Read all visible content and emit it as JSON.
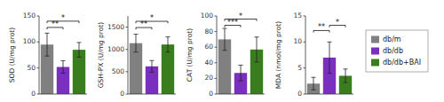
{
  "chart_data": [
    {
      "type": "bar",
      "ylabel": "SOD (U/mg prot)",
      "categories": [
        "db/m",
        "db/db",
        "db/db+BAI"
      ],
      "tick_labels": "y",
      "colors": [
        "#808080",
        "#7B2FBE",
        "#3A7D1E"
      ],
      "values": [
        95,
        52,
        85
      ],
      "errors": [
        22,
        12,
        14
      ],
      "ylim": [
        0,
        150
      ],
      "yticks": [
        0,
        50,
        100,
        150
      ],
      "annotations": [
        {
          "text": "**",
          "from": 0,
          "to": 1,
          "y": 128
        },
        {
          "text": "*",
          "from": 0,
          "to": 2,
          "y": 140
        }
      ]
    },
    {
      "type": "bar",
      "ylabel": "GSH-PX (U/mg prot)",
      "categories": [
        "db/m",
        "db/db",
        "db/db+BAI"
      ],
      "tick_labels": "y",
      "colors": [
        "#808080",
        "#7B2FBE",
        "#3A7D1E"
      ],
      "values": [
        1140,
        620,
        1110
      ],
      "errors": [
        200,
        130,
        170
      ],
      "ylim": [
        0,
        1750
      ],
      "yticks": [
        0,
        500,
        1000,
        1500
      ],
      "annotations": [
        {
          "text": "**",
          "from": 0,
          "to": 1,
          "y": 1490
        },
        {
          "text": "*",
          "from": 0,
          "to": 2,
          "y": 1630
        }
      ]
    },
    {
      "type": "bar",
      "ylabel": "CAT (U/mg prot)",
      "categories": [
        "db/m",
        "db/db",
        "db/db+BAI"
      ],
      "tick_labels": "y",
      "colors": [
        "#808080",
        "#7B2FBE",
        "#3A7D1E"
      ],
      "values": [
        70,
        27,
        57
      ],
      "errors": [
        14,
        10,
        16
      ],
      "ylim": [
        0,
        100
      ],
      "yticks": [
        0,
        20,
        40,
        60,
        80,
        100
      ],
      "annotations": [
        {
          "text": "***",
          "from": 0,
          "to": 1,
          "y": 88
        },
        {
          "text": "*",
          "from": 0,
          "to": 2,
          "y": 96
        }
      ]
    },
    {
      "type": "bar",
      "ylabel": "MDA (nmol/mg prot)",
      "categories": [
        "db/m",
        "db/db",
        "db/db+BAI"
      ],
      "tick_labels": "y",
      "colors": [
        "#808080",
        "#7B2FBE",
        "#3A7D1E"
      ],
      "values": [
        2.0,
        7.0,
        3.5
      ],
      "errors": [
        1.2,
        3.0,
        1.3
      ],
      "ylim": [
        0,
        15
      ],
      "yticks": [
        0,
        5,
        10,
        15
      ],
      "annotations": [
        {
          "text": "**",
          "from": 0,
          "to": 1,
          "y": 12.2
        },
        {
          "text": "*",
          "from": 1,
          "to": 2,
          "y": 13.2
        }
      ],
      "legend": "right"
    }
  ]
}
